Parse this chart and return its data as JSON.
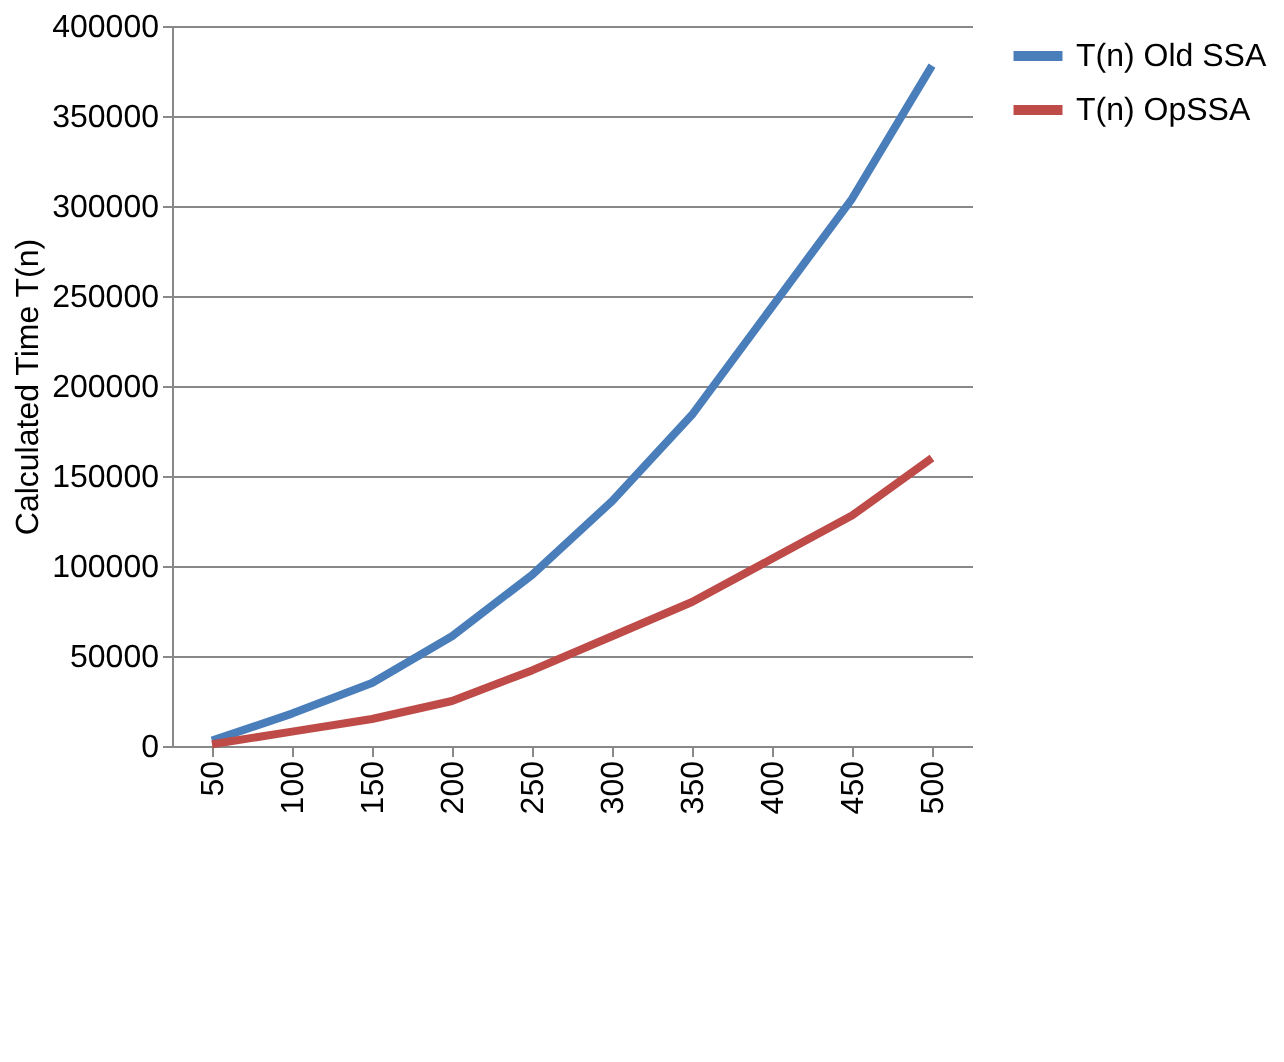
{
  "chart_data": {
    "type": "line",
    "ylabel": "Calculated  Time T(n)",
    "categories": [
      "50",
      "100",
      "150",
      "200",
      "250",
      "300",
      "350",
      "400",
      "450",
      "500"
    ],
    "series": [
      {
        "name": "T(n) Old SSA",
        "color": "#4a7ebb",
        "values": [
          3000,
          18000,
          35000,
          61000,
          95000,
          136000,
          184000,
          244000,
          304000,
          378000
        ]
      },
      {
        "name": "T(n) OpSSA",
        "color": "#be4b48",
        "values": [
          1000,
          8000,
          15000,
          25000,
          42000,
          61000,
          80000,
          104000,
          128000,
          160000
        ]
      }
    ],
    "ylim": [
      0,
      400000
    ],
    "yticks": [
      0,
      50000,
      100000,
      150000,
      200000,
      250000,
      300000,
      350000,
      400000
    ],
    "grid": "y",
    "legend": "right",
    "marker": "none",
    "line_style": "solid"
  }
}
